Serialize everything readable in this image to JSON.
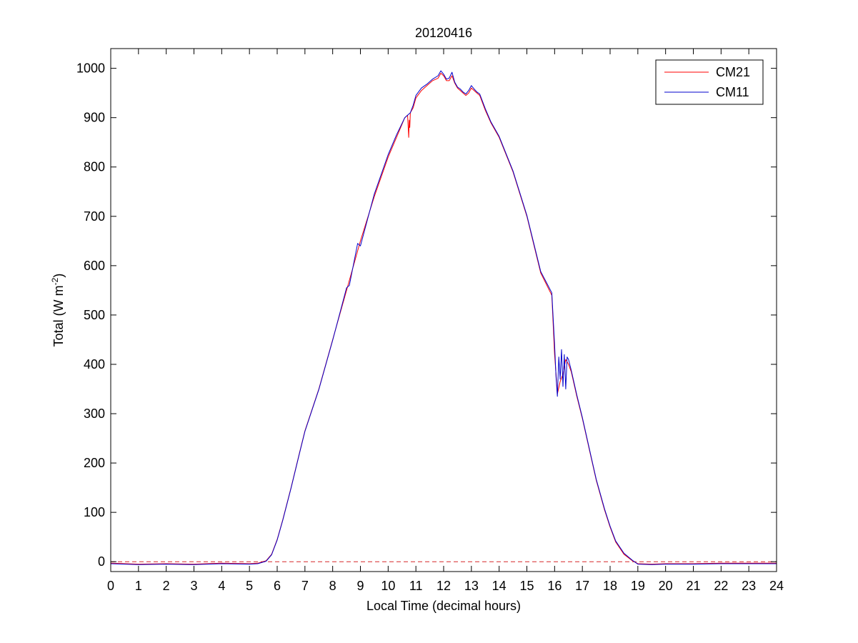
{
  "chart_data": {
    "type": "line",
    "title": "20120416",
    "xlabel": "Local Time (decimal hours)",
    "ylabel": "Total (W m-2)",
    "ylabel_parts": {
      "main": "Total (W m",
      "sup": "-2",
      "end": ")"
    },
    "xlim": [
      0,
      24
    ],
    "ylim": [
      -20,
      1040
    ],
    "xticks": [
      0,
      1,
      2,
      3,
      4,
      5,
      6,
      7,
      8,
      9,
      10,
      11,
      12,
      13,
      14,
      15,
      16,
      17,
      18,
      19,
      20,
      21,
      22,
      23,
      24
    ],
    "xtick_labels": [
      "0",
      "1",
      "2",
      "3",
      "4",
      "5",
      "6",
      "7",
      "8",
      "9",
      "10",
      "11",
      "12",
      "13",
      "14",
      "15",
      "16",
      "17",
      "18",
      "19",
      "20",
      "21",
      "22",
      "23",
      "24"
    ],
    "yticks": [
      0,
      100,
      200,
      300,
      400,
      500,
      600,
      700,
      800,
      900,
      1000
    ],
    "ytick_labels": [
      "0",
      "100",
      "200",
      "300",
      "400",
      "500",
      "600",
      "700",
      "800",
      "900",
      "1000"
    ],
    "grid": false,
    "legend_position": "top-right",
    "reference_line": {
      "y": 0,
      "style": "dashed",
      "color": "#d62728"
    },
    "series": [
      {
        "name": "CM21",
        "color": "#ff0000",
        "x": [
          0,
          1,
          2,
          3,
          4,
          5,
          5.3,
          5.6,
          5.8,
          6,
          6.2,
          6.5,
          6.8,
          7,
          7.5,
          8,
          8.5,
          9,
          9.5,
          10,
          10.3,
          10.6,
          10.7,
          10.74,
          10.76,
          10.78,
          10.8,
          10.9,
          11,
          11.2,
          11.4,
          11.6,
          11.8,
          11.9,
          12,
          12.1,
          12.2,
          12.3,
          12.4,
          12.5,
          12.6,
          12.7,
          12.8,
          12.9,
          13,
          13.1,
          13.2,
          13.3,
          13.5,
          13.7,
          14,
          14.5,
          15,
          15.5,
          15.9,
          16,
          16.05,
          16.1,
          16.2,
          16.3,
          16.4,
          16.5,
          16.6,
          16.8,
          17,
          17.3,
          17.5,
          17.8,
          18,
          18.2,
          18.5,
          18.8,
          19,
          19.5,
          20,
          21,
          22,
          23,
          24
        ],
        "y": [
          -3,
          -5,
          -4,
          -5,
          -3,
          -4,
          -3,
          2,
          15,
          45,
          85,
          150,
          220,
          265,
          350,
          450,
          550,
          650,
          740,
          820,
          860,
          900,
          905,
          860,
          895,
          880,
          910,
          920,
          940,
          955,
          965,
          975,
          980,
          990,
          985,
          975,
          975,
          985,
          970,
          960,
          955,
          950,
          945,
          950,
          960,
          955,
          950,
          945,
          915,
          890,
          860,
          790,
          700,
          585,
          540,
          420,
          380,
          340,
          365,
          380,
          410,
          400,
          385,
          335,
          290,
          215,
          165,
          105,
          70,
          40,
          15,
          2,
          -4,
          -5,
          -4,
          -4,
          -3,
          -3,
          -3
        ]
      },
      {
        "name": "CM11",
        "color": "#0000cc",
        "x": [
          0,
          1,
          2,
          3,
          4,
          5,
          5.3,
          5.6,
          5.8,
          6,
          6.2,
          6.5,
          6.8,
          7,
          7.5,
          8,
          8.5,
          8.6,
          8.9,
          9,
          9.5,
          10,
          10.3,
          10.6,
          10.8,
          10.9,
          11,
          11.2,
          11.4,
          11.6,
          11.8,
          11.9,
          12,
          12.1,
          12.2,
          12.3,
          12.4,
          12.5,
          12.6,
          12.7,
          12.8,
          12.9,
          13,
          13.1,
          13.2,
          13.3,
          13.5,
          13.7,
          14,
          14.5,
          15,
          15.5,
          15.9,
          16,
          16.05,
          16.1,
          16.15,
          16.2,
          16.25,
          16.3,
          16.35,
          16.4,
          16.45,
          16.5,
          16.6,
          16.8,
          17,
          17.3,
          17.5,
          17.8,
          18,
          18.2,
          18.5,
          18.8,
          19,
          19.5,
          20,
          21,
          22,
          23,
          24
        ],
        "y": [
          -4,
          -6,
          -5,
          -6,
          -4,
          -5,
          -4,
          1,
          14,
          44,
          84,
          149,
          219,
          264,
          349,
          449,
          555,
          560,
          645,
          640,
          745,
          825,
          865,
          900,
          910,
          925,
          945,
          960,
          968,
          978,
          985,
          995,
          988,
          978,
          980,
          992,
          972,
          962,
          958,
          952,
          948,
          955,
          965,
          958,
          952,
          948,
          918,
          892,
          862,
          792,
          702,
          588,
          545,
          440,
          375,
          335,
          415,
          370,
          430,
          355,
          420,
          350,
          415,
          410,
          388,
          338,
          292,
          217,
          167,
          107,
          72,
          42,
          17,
          3,
          -5,
          -6,
          -5,
          -5,
          -4,
          -4,
          -4
        ]
      }
    ]
  }
}
